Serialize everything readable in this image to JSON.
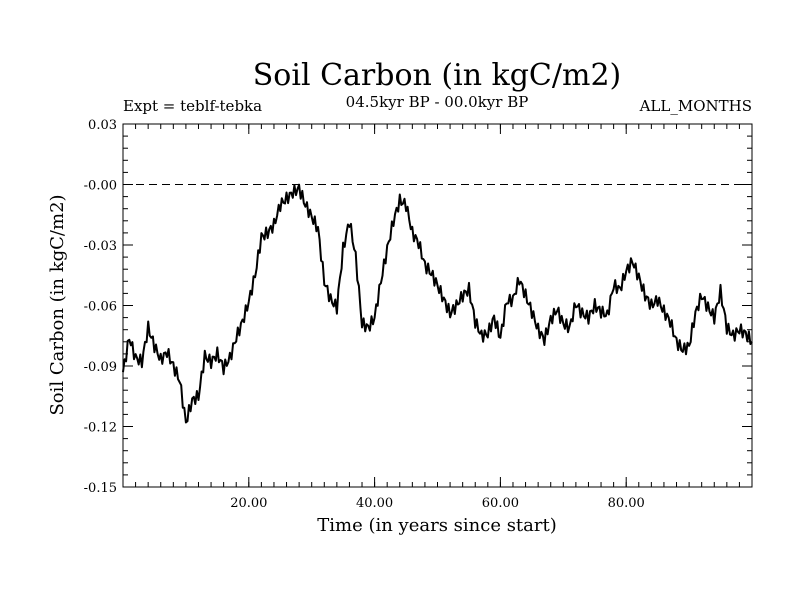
{
  "chart_data": {
    "type": "line",
    "title": "Soil Carbon (in kgC/m2)",
    "subtitle": "04.5kyr BP - 00.0kyr BP",
    "expt_label": "Expt = teblf-tebka",
    "period_label": "ALL_MONTHS",
    "xlabel": "Time (in years since start)",
    "ylabel": "Soil Carbon (in kgC/m2)",
    "xlim": [
      0,
      100
    ],
    "ylim": [
      -0.15,
      0.03
    ],
    "x_ticks": [
      20,
      40,
      60,
      80
    ],
    "x_tick_labels": [
      "20.00",
      "40.00",
      "60.00",
      "80.00"
    ],
    "y_ticks": [
      0.03,
      0.0,
      -0.03,
      -0.06,
      -0.09,
      -0.12,
      -0.15
    ],
    "y_tick_labels": [
      "0.03",
      "-0.00",
      "-0.03",
      "-0.06",
      "-0.09",
      "-0.12",
      "-0.15"
    ],
    "reference_line": 0.0,
    "series": [
      {
        "name": "Soil Carbon",
        "color": "#000000",
        "x": [
          0,
          1,
          2,
          3,
          4,
          5,
          6,
          7,
          8,
          9,
          10,
          11,
          12,
          13,
          14,
          15,
          16,
          17,
          18,
          19,
          20,
          21,
          22,
          23,
          24,
          25,
          26,
          27,
          28,
          29,
          30,
          31,
          32,
          33,
          34,
          35,
          36,
          37,
          38,
          39,
          40,
          41,
          42,
          43,
          44,
          45,
          46,
          47,
          48,
          49,
          50,
          51,
          52,
          53,
          54,
          55,
          56,
          57,
          58,
          59,
          60,
          61,
          62,
          63,
          64,
          65,
          66,
          67,
          68,
          69,
          70,
          71,
          72,
          73,
          74,
          75,
          76,
          77,
          78,
          79,
          80,
          81,
          82,
          83,
          84,
          85,
          86,
          87,
          88,
          89,
          90,
          91,
          92,
          93,
          94,
          95,
          96,
          97,
          98,
          99,
          100
        ],
        "values": [
          -0.093,
          -0.076,
          -0.086,
          -0.088,
          -0.071,
          -0.08,
          -0.087,
          -0.083,
          -0.09,
          -0.097,
          -0.118,
          -0.107,
          -0.105,
          -0.085,
          -0.088,
          -0.084,
          -0.091,
          -0.086,
          -0.076,
          -0.068,
          -0.058,
          -0.045,
          -0.026,
          -0.024,
          -0.02,
          -0.01,
          -0.007,
          -0.004,
          -0.002,
          -0.01,
          -0.016,
          -0.022,
          -0.048,
          -0.057,
          -0.061,
          -0.032,
          -0.018,
          -0.036,
          -0.069,
          -0.071,
          -0.066,
          -0.048,
          -0.032,
          -0.018,
          -0.008,
          -0.01,
          -0.024,
          -0.029,
          -0.04,
          -0.044,
          -0.05,
          -0.057,
          -0.064,
          -0.06,
          -0.055,
          -0.052,
          -0.068,
          -0.075,
          -0.074,
          -0.066,
          -0.076,
          -0.058,
          -0.057,
          -0.047,
          -0.055,
          -0.063,
          -0.072,
          -0.077,
          -0.067,
          -0.062,
          -0.069,
          -0.071,
          -0.059,
          -0.064,
          -0.066,
          -0.06,
          -0.063,
          -0.065,
          -0.05,
          -0.052,
          -0.043,
          -0.038,
          -0.046,
          -0.055,
          -0.06,
          -0.057,
          -0.063,
          -0.068,
          -0.078,
          -0.082,
          -0.08,
          -0.064,
          -0.055,
          -0.061,
          -0.066,
          -0.053,
          -0.071,
          -0.075,
          -0.072,
          -0.074,
          -0.078
        ]
      }
    ]
  }
}
